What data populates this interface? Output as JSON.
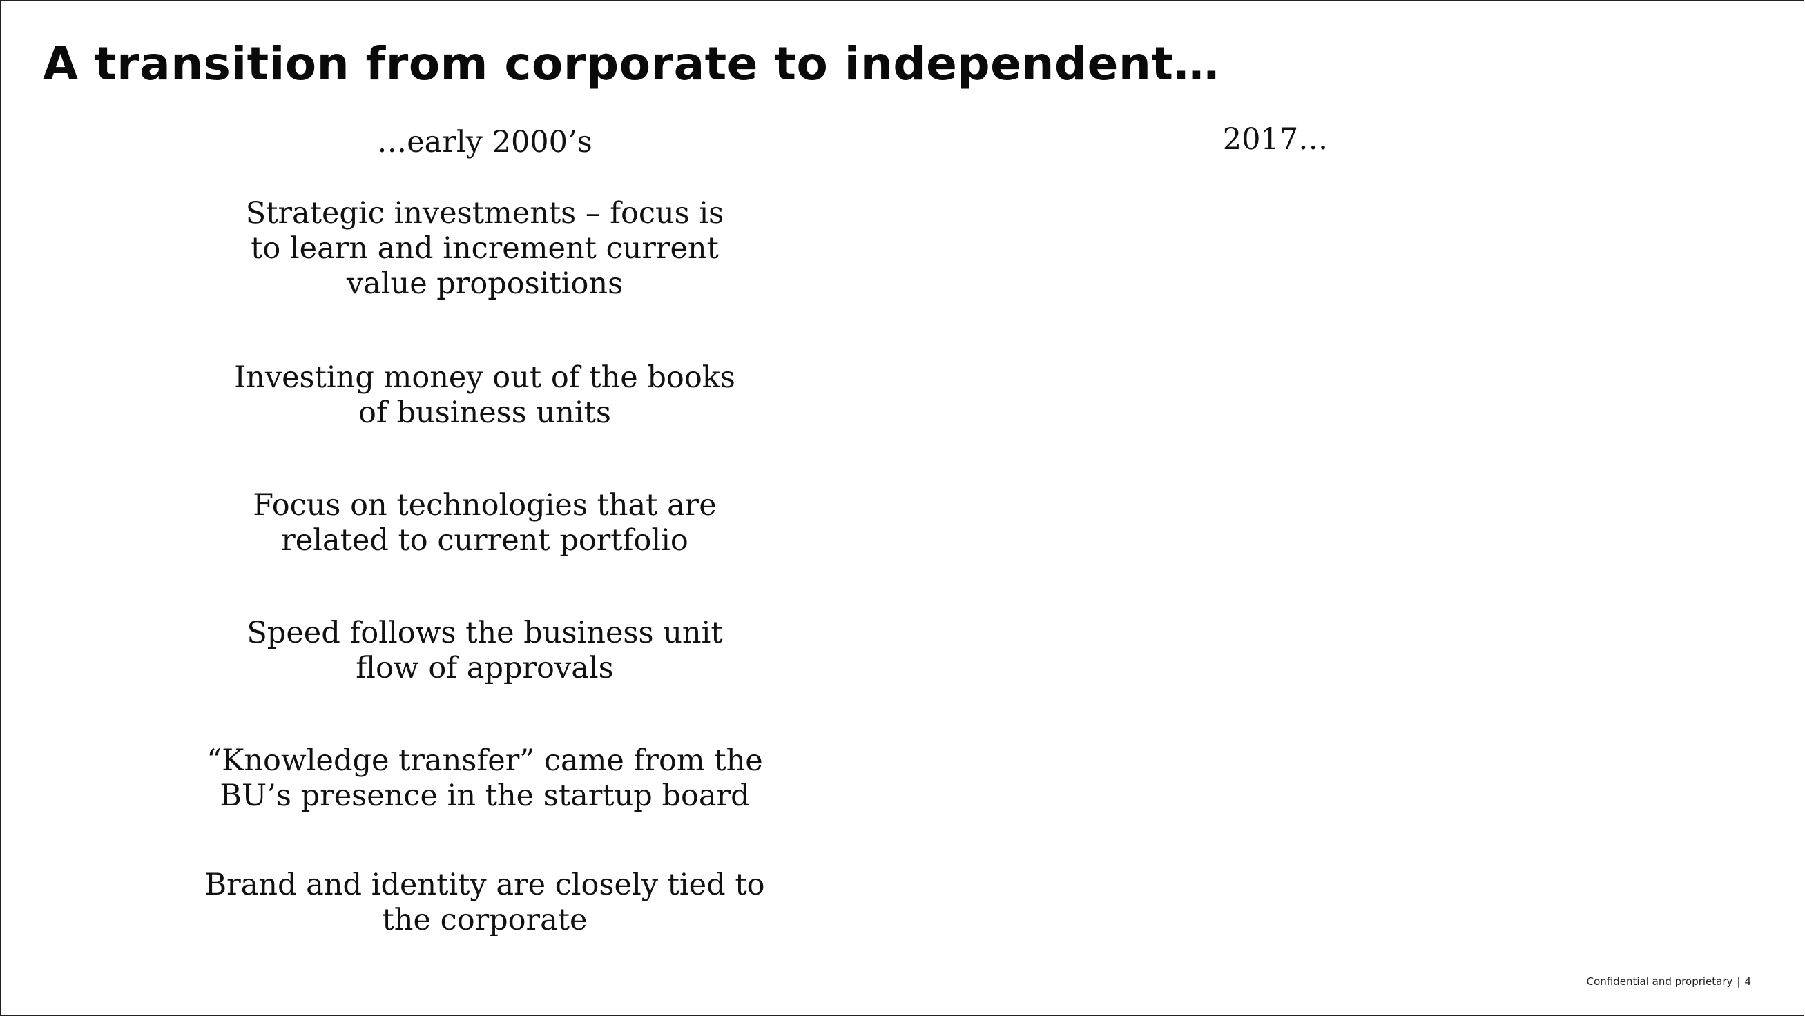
{
  "slide": {
    "title": "A transition from corporate to independent…",
    "left_column": {
      "heading": "…early 2000’s",
      "points": [
        "Strategic investments – focus is\nto learn and increment current\nvalue propositions",
        "Investing money out of the books\nof business units",
        "Focus on technologies that are\nrelated to current portfolio",
        "Speed follows the business unit\nflow of approvals",
        "“Knowledge transfer” came from the\nBU’s presence in the startup board",
        "Brand and identity are closely tied to\nthe corporate"
      ]
    },
    "right_column": {
      "heading": "2017…"
    },
    "footer": {
      "text": "Confidential and proprietary",
      "separator": "|",
      "page_number": "4"
    }
  }
}
